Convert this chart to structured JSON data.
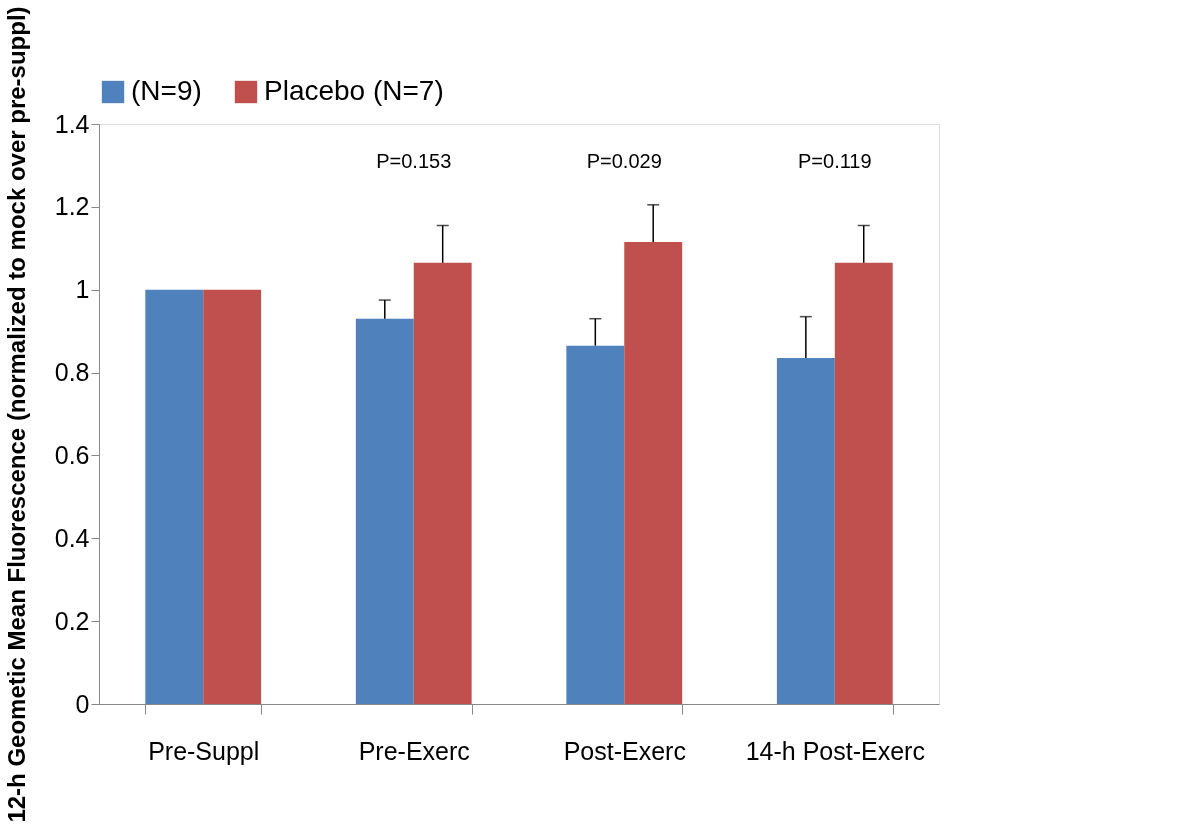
{
  "chart_data": {
    "type": "bar",
    "ylabel": "12-h Geometic Mean Fluorescence (normalized to mock over pre-suppl)",
    "categories": [
      "Pre-Suppl",
      "Pre-Exerc",
      "Post-Exerc",
      "14-h Post-Exerc"
    ],
    "series": [
      {
        "name": "(N=9)",
        "color": "#4f81bd",
        "values": [
          1.0,
          0.93,
          0.865,
          0.835
        ],
        "errors": [
          null,
          [
            0.93,
            0.975
          ],
          [
            0.865,
            0.93
          ],
          [
            0.835,
            0.935
          ]
        ]
      },
      {
        "name": "Placebo (N=7)",
        "color": "#c0504d",
        "values": [
          1.0,
          1.065,
          1.115,
          1.065
        ],
        "errors": [
          null,
          [
            1.065,
            1.155
          ],
          [
            1.115,
            1.205
          ],
          [
            1.065,
            1.155
          ]
        ]
      }
    ],
    "ylim": [
      0,
      1.4
    ],
    "yticks": [
      0,
      0.2,
      0.4,
      0.6,
      0.8,
      1,
      1.2,
      1.4
    ],
    "grid": false,
    "legend": "top",
    "annotations": [
      "P=0.153",
      "P=0.029",
      "P=0.119"
    ]
  }
}
